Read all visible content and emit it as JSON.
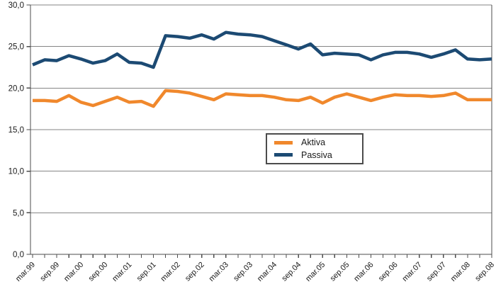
{
  "chart_data": {
    "type": "line",
    "title": "",
    "grid": true,
    "legend_position": "inside-center-left",
    "x_axis": {
      "frequency": "quarterly",
      "total_points": 39,
      "points_per_labeled_tick": 2,
      "labeled_ticks": [
        "mar.99",
        "sep.99",
        "mar.00",
        "sep.00",
        "mar.01",
        "sep.01",
        "mar.02",
        "sep.02",
        "mar.03",
        "sep.03",
        "mar.04",
        "sep.04",
        "mar.05",
        "sep.05",
        "mar.06",
        "sep.06",
        "mar.07",
        "sep.07",
        "mar.08",
        "sep.08"
      ]
    },
    "y_axis": {
      "min": 0,
      "max": 30,
      "step": 5,
      "tick_labels": [
        "30,0",
        "25,0",
        "20,0",
        "15,0",
        "10,0",
        "5,0",
        "0,0"
      ]
    },
    "series": [
      {
        "name": "Aktiva",
        "color": "#F0882C",
        "values": [
          18.5,
          18.5,
          18.4,
          19.1,
          18.3,
          17.9,
          18.4,
          18.9,
          18.3,
          18.4,
          17.8,
          19.7,
          19.6,
          19.4,
          19.0,
          18.6,
          19.3,
          19.2,
          19.1,
          19.1,
          18.9,
          18.6,
          18.5,
          18.9,
          18.2,
          18.9,
          19.3,
          18.9,
          18.5,
          18.9,
          19.2,
          19.1,
          19.1,
          19.0,
          19.1,
          19.4,
          18.6,
          18.6,
          18.6
        ]
      },
      {
        "name": "Passiva",
        "color": "#1C4A73",
        "values": [
          22.8,
          23.4,
          23.3,
          23.9,
          23.5,
          23.0,
          23.3,
          24.1,
          23.1,
          23.0,
          22.5,
          26.3,
          26.2,
          26.0,
          26.4,
          25.9,
          26.7,
          26.5,
          26.4,
          26.2,
          25.7,
          25.2,
          24.7,
          25.3,
          24.0,
          24.2,
          24.1,
          24.0,
          23.4,
          24.0,
          24.3,
          24.3,
          24.1,
          23.7,
          24.1,
          24.6,
          23.5,
          23.4,
          23.5
        ]
      }
    ]
  },
  "colors": {
    "gridline": "#868686",
    "plot_border": "#4d4d4d",
    "tick": "#4d4d4d",
    "text": "#1a1a1a",
    "background": "#ffffff",
    "legend_border": "#4c4c4c"
  }
}
